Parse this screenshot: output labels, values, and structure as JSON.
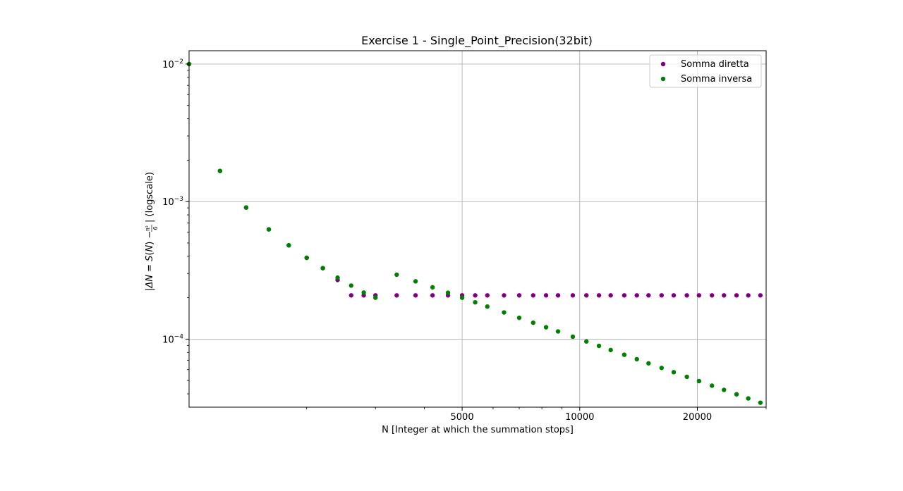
{
  "chart_data": {
    "type": "scatter",
    "title": "Exercise 1 - Single_Point_Precision(32bit)",
    "xlabel": "N [Integer at which the summation stops]",
    "ylabel_text": "(logscale)",
    "x_scale": "log",
    "y_scale": "log",
    "xlim": [
      1000,
      30000
    ],
    "ylim": [
      3.2e-05,
      0.0125
    ],
    "x_ticks": [
      5000,
      10000,
      20000
    ],
    "x_tick_labels": [
      "5000",
      "10000",
      "20000"
    ],
    "y_ticks": [
      0.0001,
      0.001,
      0.01
    ],
    "grid": true,
    "legend_position": "top-right",
    "series": [
      {
        "name": "Somma diretta",
        "color": "#800080",
        "x": [
          1000,
          1200,
          1400,
          1600,
          1800,
          2000,
          2200,
          2400,
          2600,
          2800,
          3000,
          3200,
          3400,
          3600,
          3800,
          4000,
          4200,
          4400,
          4600,
          4800,
          5000
        ],
        "y": [
          0.00999,
          0.00167,
          0.000905,
          0.000628,
          0.000481,
          0.00039,
          0.000328,
          0.000269,
          0.000208,
          0.000208,
          0.000208,
          0.000208,
          0.000208,
          0.000208,
          0.000208,
          0.000208,
          0.000208,
          0.000208,
          0.000208,
          0.000208,
          0.000208
        ],
        "y_plateau": 0.000208
      },
      {
        "name": "Somma inversa",
        "color": "#008000",
        "x": [
          1000,
          1200,
          1400,
          1600,
          1800,
          2000,
          2200,
          2400,
          2600,
          2800,
          3000
        ],
        "y": [
          0.00999,
          0.00167,
          0.000905,
          0.000628,
          0.000481,
          0.00039,
          0.000328,
          0.00028,
          0.000245,
          0.000218,
          0.0002
        ]
      }
    ]
  }
}
